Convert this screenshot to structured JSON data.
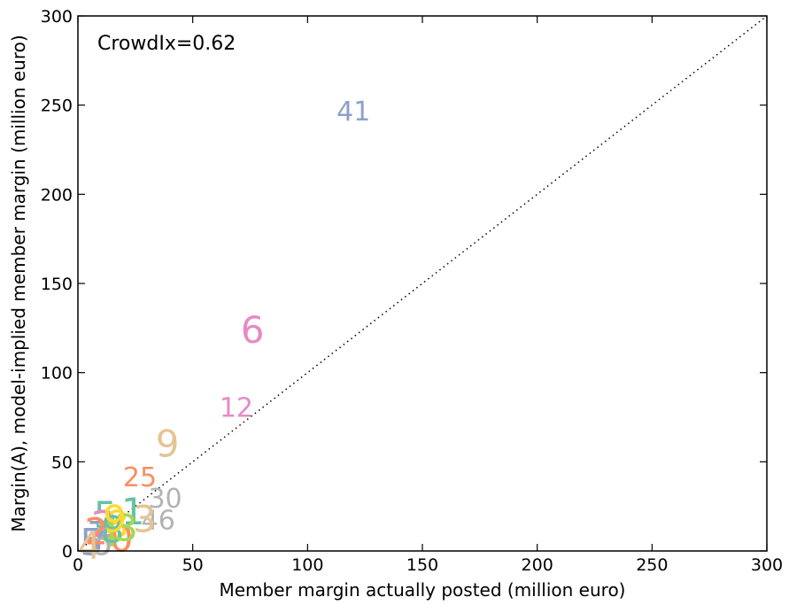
{
  "chart_data": {
    "type": "scatter",
    "title": "",
    "xlabel": "Member margin actually posted (million euro)",
    "ylabel": "Margin(A), model-implied member margin (million euro)",
    "xlim": [
      0,
      300
    ],
    "ylim": [
      0,
      300
    ],
    "xticks": [
      "0",
      "50",
      "100",
      "150",
      "200",
      "250",
      "300"
    ],
    "yticks": [
      "0",
      "50",
      "100",
      "150",
      "200",
      "250",
      "300"
    ],
    "annotation": "CrowdIx=0.62",
    "grid": false,
    "diagonal_line": "dotted y = x",
    "points": [
      {
        "label": "41",
        "x": 120,
        "y": 246,
        "color": "#8da0cb"
      },
      {
        "label": "6",
        "x": 76,
        "y": 124,
        "color": "#e78ac3"
      },
      {
        "label": "12",
        "x": 69,
        "y": 80,
        "color": "#e78ac3"
      },
      {
        "label": "9",
        "x": 39,
        "y": 60,
        "color": "#e5c494"
      },
      {
        "label": "25",
        "x": 27,
        "y": 41,
        "color": "#fc8d62"
      },
      {
        "label": "30",
        "x": 38,
        "y": 29,
        "color": "#b3b3b3"
      },
      {
        "label": "46",
        "x": 35,
        "y": 17,
        "color": "#b3b3b3"
      },
      {
        "label": "3",
        "x": 29,
        "y": 18,
        "color": "#e5c494"
      },
      {
        "label": "1",
        "x": 24,
        "y": 22,
        "color": "#66c2a5"
      },
      {
        "label": "5",
        "x": 12,
        "y": 20,
        "color": "#66c2a5"
      },
      {
        "label": "8",
        "x": 17,
        "y": 15,
        "color": "#ffd92f"
      },
      {
        "label": "2",
        "x": 11,
        "y": 15,
        "color": "#e78ac3"
      },
      {
        "label": "0",
        "x": 19,
        "y": 7,
        "color": "#fc8d62"
      },
      {
        "label": "4",
        "x": 13,
        "y": 10,
        "color": "#a6d854"
      },
      {
        "label": "7",
        "x": 9,
        "y": 9,
        "color": "#8da0cb"
      },
      {
        "label": "5",
        "x": 6,
        "y": 5,
        "color": "#8da0cb"
      },
      {
        "label": "6",
        "x": 10,
        "y": 5,
        "color": "#b3b3b3"
      },
      {
        "label": "8",
        "x": 15,
        "y": 12,
        "color": "#66c2a5"
      },
      {
        "label": "3",
        "x": 21,
        "y": 13,
        "color": "#a6d854"
      },
      {
        "label": "2",
        "x": 8,
        "y": 11,
        "color": "#fc8d62"
      },
      {
        "label": "9",
        "x": 16,
        "y": 18,
        "color": "#ffd92f"
      },
      {
        "label": "4",
        "x": 5,
        "y": 3,
        "color": "#e5c494"
      }
    ]
  }
}
